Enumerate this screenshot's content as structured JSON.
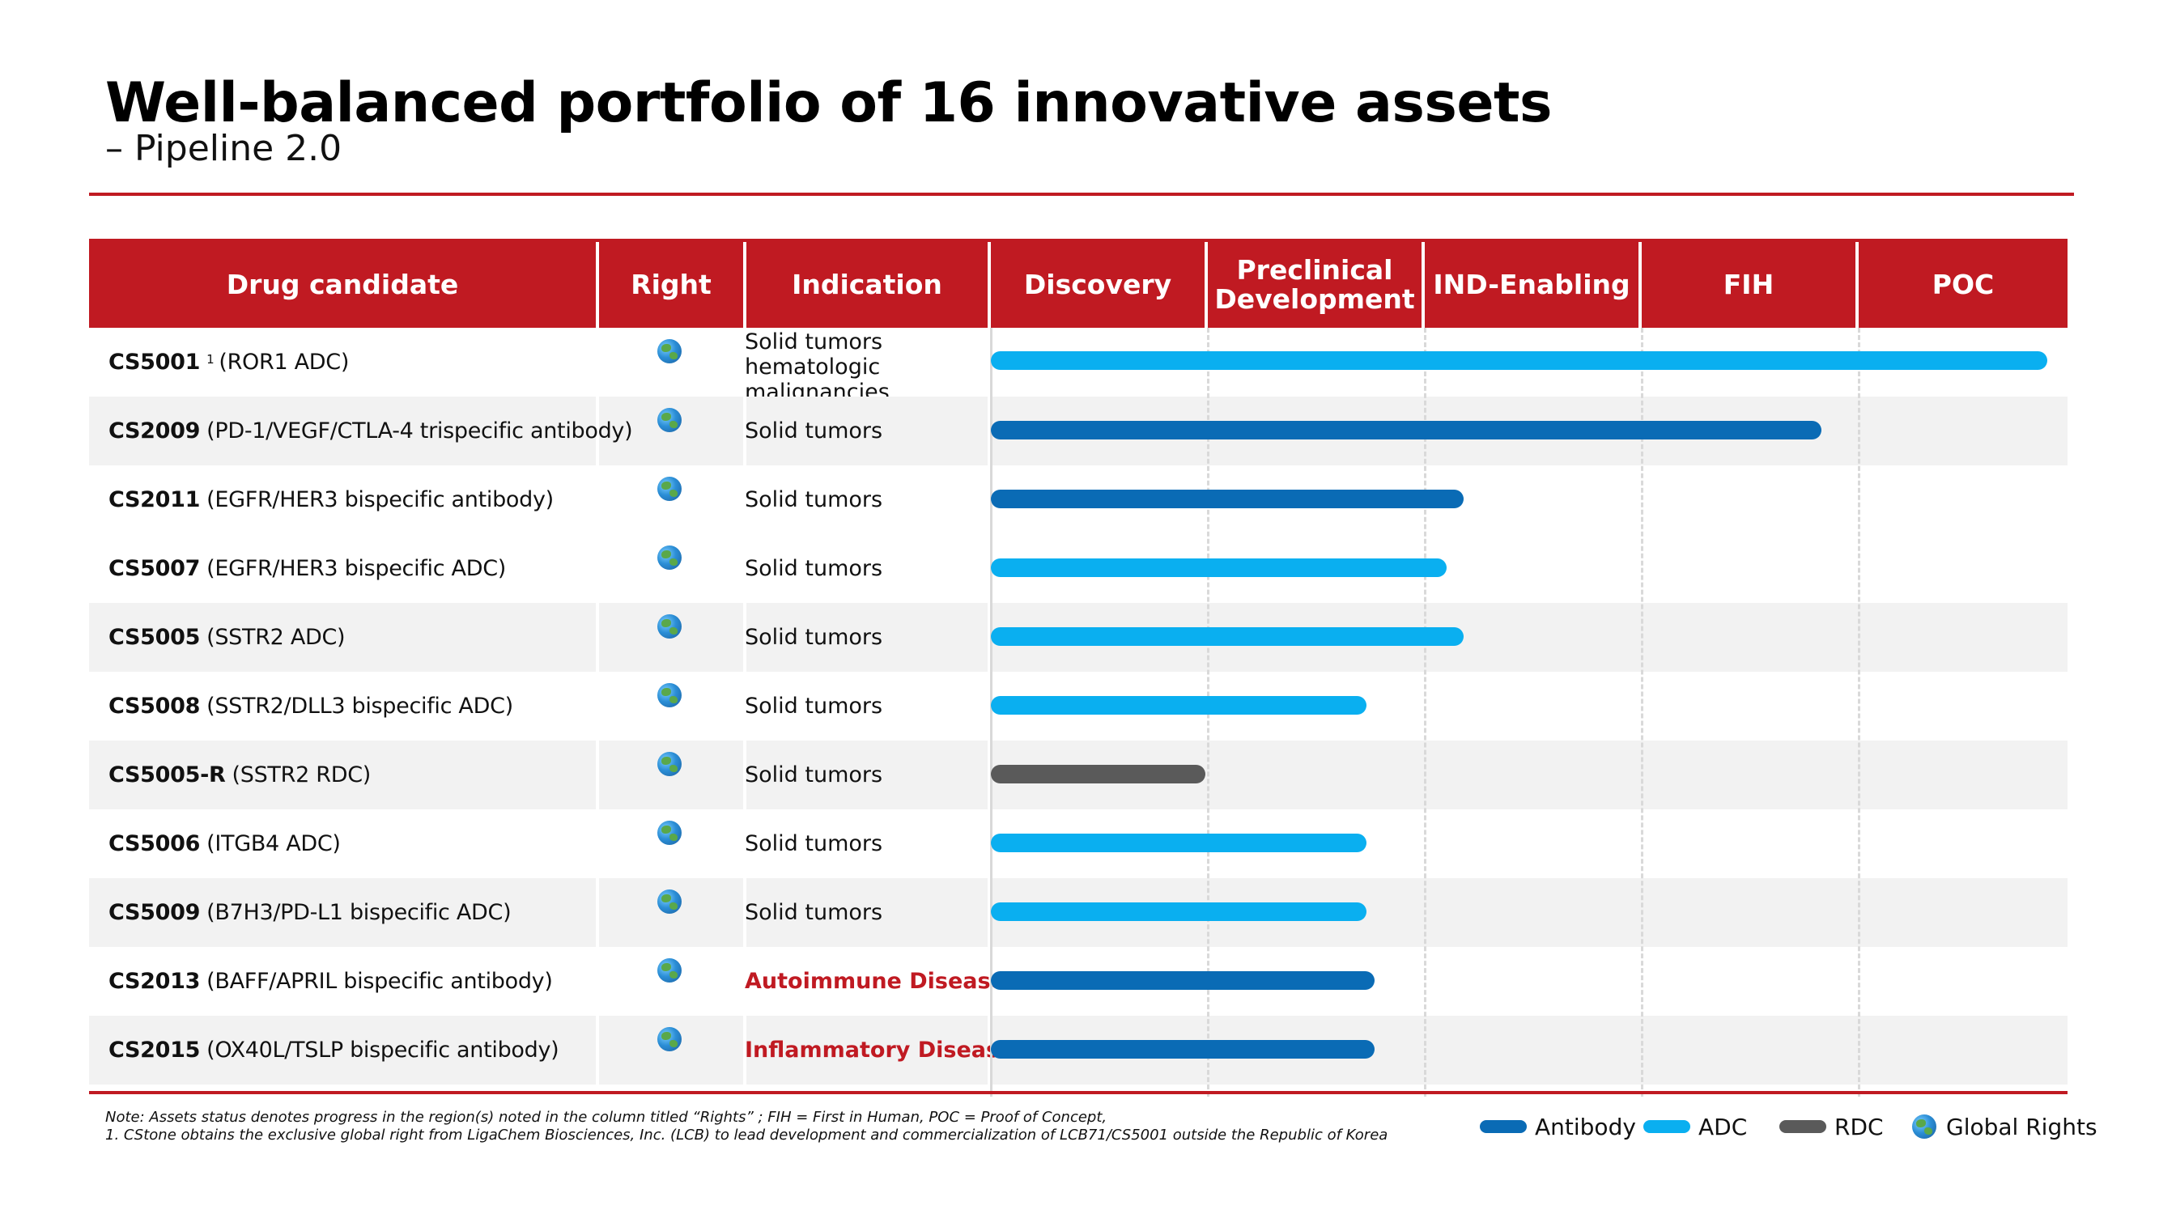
{
  "title": "Well-balanced portfolio of 16 innovative assets",
  "subtitle": "– Pipeline 2.0",
  "columns": {
    "drug": "Drug candidate",
    "right": "Right",
    "indication": "Indication",
    "phases": [
      "Discovery",
      "Preclinical Development",
      "IND-Enabling",
      "FIH",
      "POC"
    ]
  },
  "colors": {
    "brand_red": "#c01a22",
    "antibody": "#0a6bb5",
    "adc": "#0aaff0",
    "rdc": "#5a5a5a"
  },
  "rows": [
    {
      "code": "CS5001",
      "sup": "1",
      "desc": "(ROR1 ADC)",
      "indication": "Solid tumors hematologic malignancies",
      "indication_style": "multi",
      "type": "adc",
      "progress_phases": 4.87,
      "shaded": false
    },
    {
      "code": "CS2009",
      "sup": "",
      "desc": "(PD-1/VEGF/CTLA-4 trispecific antibody)",
      "indication": "Solid tumors",
      "indication_style": "normal",
      "type": "antibody",
      "progress_phases": 3.83,
      "shaded": true
    },
    {
      "code": "CS2011",
      "sup": "",
      "desc": "(EGFR/HER3 bispecific antibody)",
      "indication": "Solid tumors",
      "indication_style": "normal",
      "type": "antibody",
      "progress_phases": 2.18,
      "shaded": false
    },
    {
      "code": "CS5007",
      "sup": "",
      "desc": "(EGFR/HER3 bispecific ADC)",
      "indication": "Solid tumors",
      "indication_style": "normal",
      "type": "adc",
      "progress_phases": 2.1,
      "shaded": false
    },
    {
      "code": "CS5005",
      "sup": "",
      "desc": "(SSTR2 ADC)",
      "indication": "Solid tumors",
      "indication_style": "normal",
      "type": "adc",
      "progress_phases": 2.18,
      "shaded": true
    },
    {
      "code": "CS5008",
      "sup": "",
      "desc": "(SSTR2/DLL3 bispecific ADC)",
      "indication": "Solid tumors",
      "indication_style": "normal",
      "type": "adc",
      "progress_phases": 1.73,
      "shaded": false
    },
    {
      "code": "CS5005-R",
      "sup": "",
      "desc": "(SSTR2 RDC)",
      "indication": "Solid tumors",
      "indication_style": "normal",
      "type": "rdc",
      "progress_phases": 0.99,
      "shaded": true
    },
    {
      "code": "CS5006",
      "sup": "",
      "desc": "(ITGB4 ADC)",
      "indication": "Solid tumors",
      "indication_style": "normal",
      "type": "adc",
      "progress_phases": 1.73,
      "shaded": false
    },
    {
      "code": "CS5009",
      "sup": "",
      "desc": "(B7H3/PD-L1 bispecific ADC)",
      "indication": "Solid tumors",
      "indication_style": "normal",
      "type": "adc",
      "progress_phases": 1.73,
      "shaded": true
    },
    {
      "code": "CS2013",
      "sup": "",
      "desc": "(BAFF/APRIL bispecific antibody)",
      "indication": "Autoimmune Diseases",
      "indication_style": "red",
      "type": "antibody",
      "progress_phases": 1.77,
      "shaded": false
    },
    {
      "code": "CS2015",
      "sup": "",
      "desc": "(OX40L/TSLP bispecific antibody)",
      "indication": "Inflammatory Diseases",
      "indication_style": "red",
      "type": "antibody",
      "progress_phases": 1.77,
      "shaded": true
    }
  ],
  "notes": {
    "line1": "Note: Assets status denotes progress in the region(s) noted in the column titled   “Rights”  ; FIH = First in Human, POC = Proof of Concept,",
    "line2": "1. CStone obtains the exclusive global right from LigaChem Biosciences, Inc. (LCB) to lead development and commercialization of LCB71/CS5001 outside the Republic of Korea"
  },
  "legend": {
    "antibody": "Antibody",
    "adc": "ADC",
    "rdc": "RDC",
    "global": "Global Rights"
  }
}
